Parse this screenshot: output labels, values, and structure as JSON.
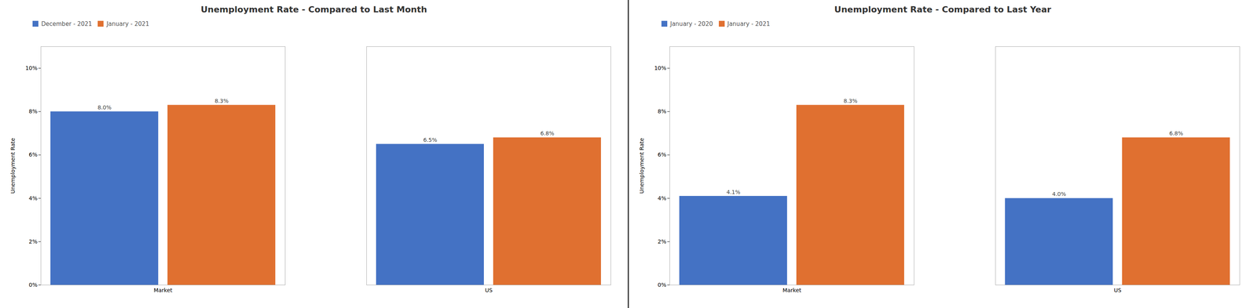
{
  "chart_data": [
    {
      "type": "bar",
      "title": "Unemployment Rate - Compared to Last Month",
      "categories": [
        "Market",
        "US"
      ],
      "series": [
        {
          "name": "December - 2021",
          "color": "#4472C4",
          "values": [
            8.0,
            6.5
          ],
          "value_labels": [
            "8.0%",
            "6.5%"
          ]
        },
        {
          "name": "January - 2021",
          "color": "#E07030",
          "values": [
            8.3,
            6.8
          ],
          "value_labels": [
            "8.3%",
            "6.8%"
          ]
        }
      ],
      "ylabel": "Unemployment Rate",
      "ylim": [
        0,
        11.0
      ],
      "yticks": [
        {
          "value": 0,
          "label": "0%"
        },
        {
          "value": 2,
          "label": "2%"
        },
        {
          "value": 4,
          "label": "4%"
        },
        {
          "value": 6,
          "label": "6%"
        },
        {
          "value": 8,
          "label": "8%"
        },
        {
          "value": 10,
          "label": "10%"
        }
      ],
      "grid": false,
      "legend": "upper left",
      "data_labels": true
    },
    {
      "type": "bar",
      "title": "Unemployment Rate - Compared to Last Year",
      "categories": [
        "Market",
        "US"
      ],
      "series": [
        {
          "name": "January - 2020",
          "color": "#4472C4",
          "values": [
            4.1,
            4.0
          ],
          "value_labels": [
            "4.1%",
            "4.0%"
          ]
        },
        {
          "name": "January - 2021",
          "color": "#E07030",
          "values": [
            8.3,
            6.8
          ],
          "value_labels": [
            "8.3%",
            "6.8%"
          ]
        }
      ],
      "ylabel": "Unemployment Rate",
      "ylim": [
        0,
        11.0
      ],
      "yticks": [
        {
          "value": 0,
          "label": "0%"
        },
        {
          "value": 2,
          "label": "2%"
        },
        {
          "value": 4,
          "label": "4%"
        },
        {
          "value": 6,
          "label": "6%"
        },
        {
          "value": 8,
          "label": "8%"
        },
        {
          "value": 10,
          "label": "10%"
        }
      ],
      "grid": false,
      "legend": "upper left",
      "data_labels": true
    }
  ]
}
